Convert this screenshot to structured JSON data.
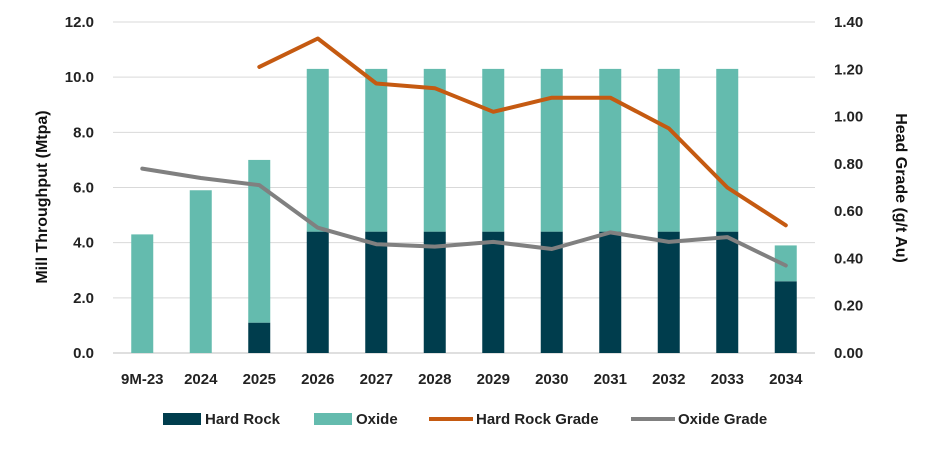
{
  "chart_data": {
    "type": "bar",
    "subtype": "stacked-bar-with-lines",
    "categories": [
      "9M-23",
      "2024",
      "2025",
      "2026",
      "2027",
      "2028",
      "2029",
      "2030",
      "2031",
      "2032",
      "2033",
      "2034"
    ],
    "bar_series": [
      {
        "name": "Hard Rock",
        "color": "#003d4d",
        "values": [
          0,
          0,
          1.1,
          4.4,
          4.4,
          4.4,
          4.4,
          4.4,
          4.4,
          4.4,
          4.4,
          2.6
        ]
      },
      {
        "name": "Oxide",
        "color": "#64bbae",
        "values": [
          4.3,
          5.9,
          5.9,
          5.9,
          5.9,
          5.9,
          5.9,
          5.9,
          5.9,
          5.9,
          5.9,
          1.3
        ]
      }
    ],
    "line_series": [
      {
        "name": "Hard Rock Grade",
        "color": "#c55a11",
        "axis": "right",
        "values": [
          null,
          null,
          1.21,
          1.33,
          1.14,
          1.12,
          1.02,
          1.08,
          1.08,
          0.95,
          0.7,
          0.54
        ]
      },
      {
        "name": "Oxide Grade",
        "color": "#808080",
        "axis": "right",
        "values": [
          0.78,
          0.74,
          0.71,
          0.53,
          0.46,
          0.45,
          0.47,
          0.44,
          0.51,
          0.47,
          0.49,
          0.37
        ]
      }
    ],
    "ylabel": "Mill Throughput (Mtpa)",
    "y2label": "Head Grade (g/t Au)",
    "ylim": [
      0,
      12
    ],
    "y2lim": [
      0,
      1.4
    ],
    "yticks": [
      "0.0",
      "2.0",
      "4.0",
      "6.0",
      "8.0",
      "10.0",
      "12.0"
    ],
    "y2ticks": [
      "0.00",
      "0.20",
      "0.40",
      "0.60",
      "0.80",
      "1.00",
      "1.20",
      "1.40"
    ],
    "grid": true,
    "legend_position": "bottom",
    "legend": [
      "Hard Rock",
      "Oxide",
      "Hard Rock Grade",
      "Oxide Grade"
    ]
  }
}
